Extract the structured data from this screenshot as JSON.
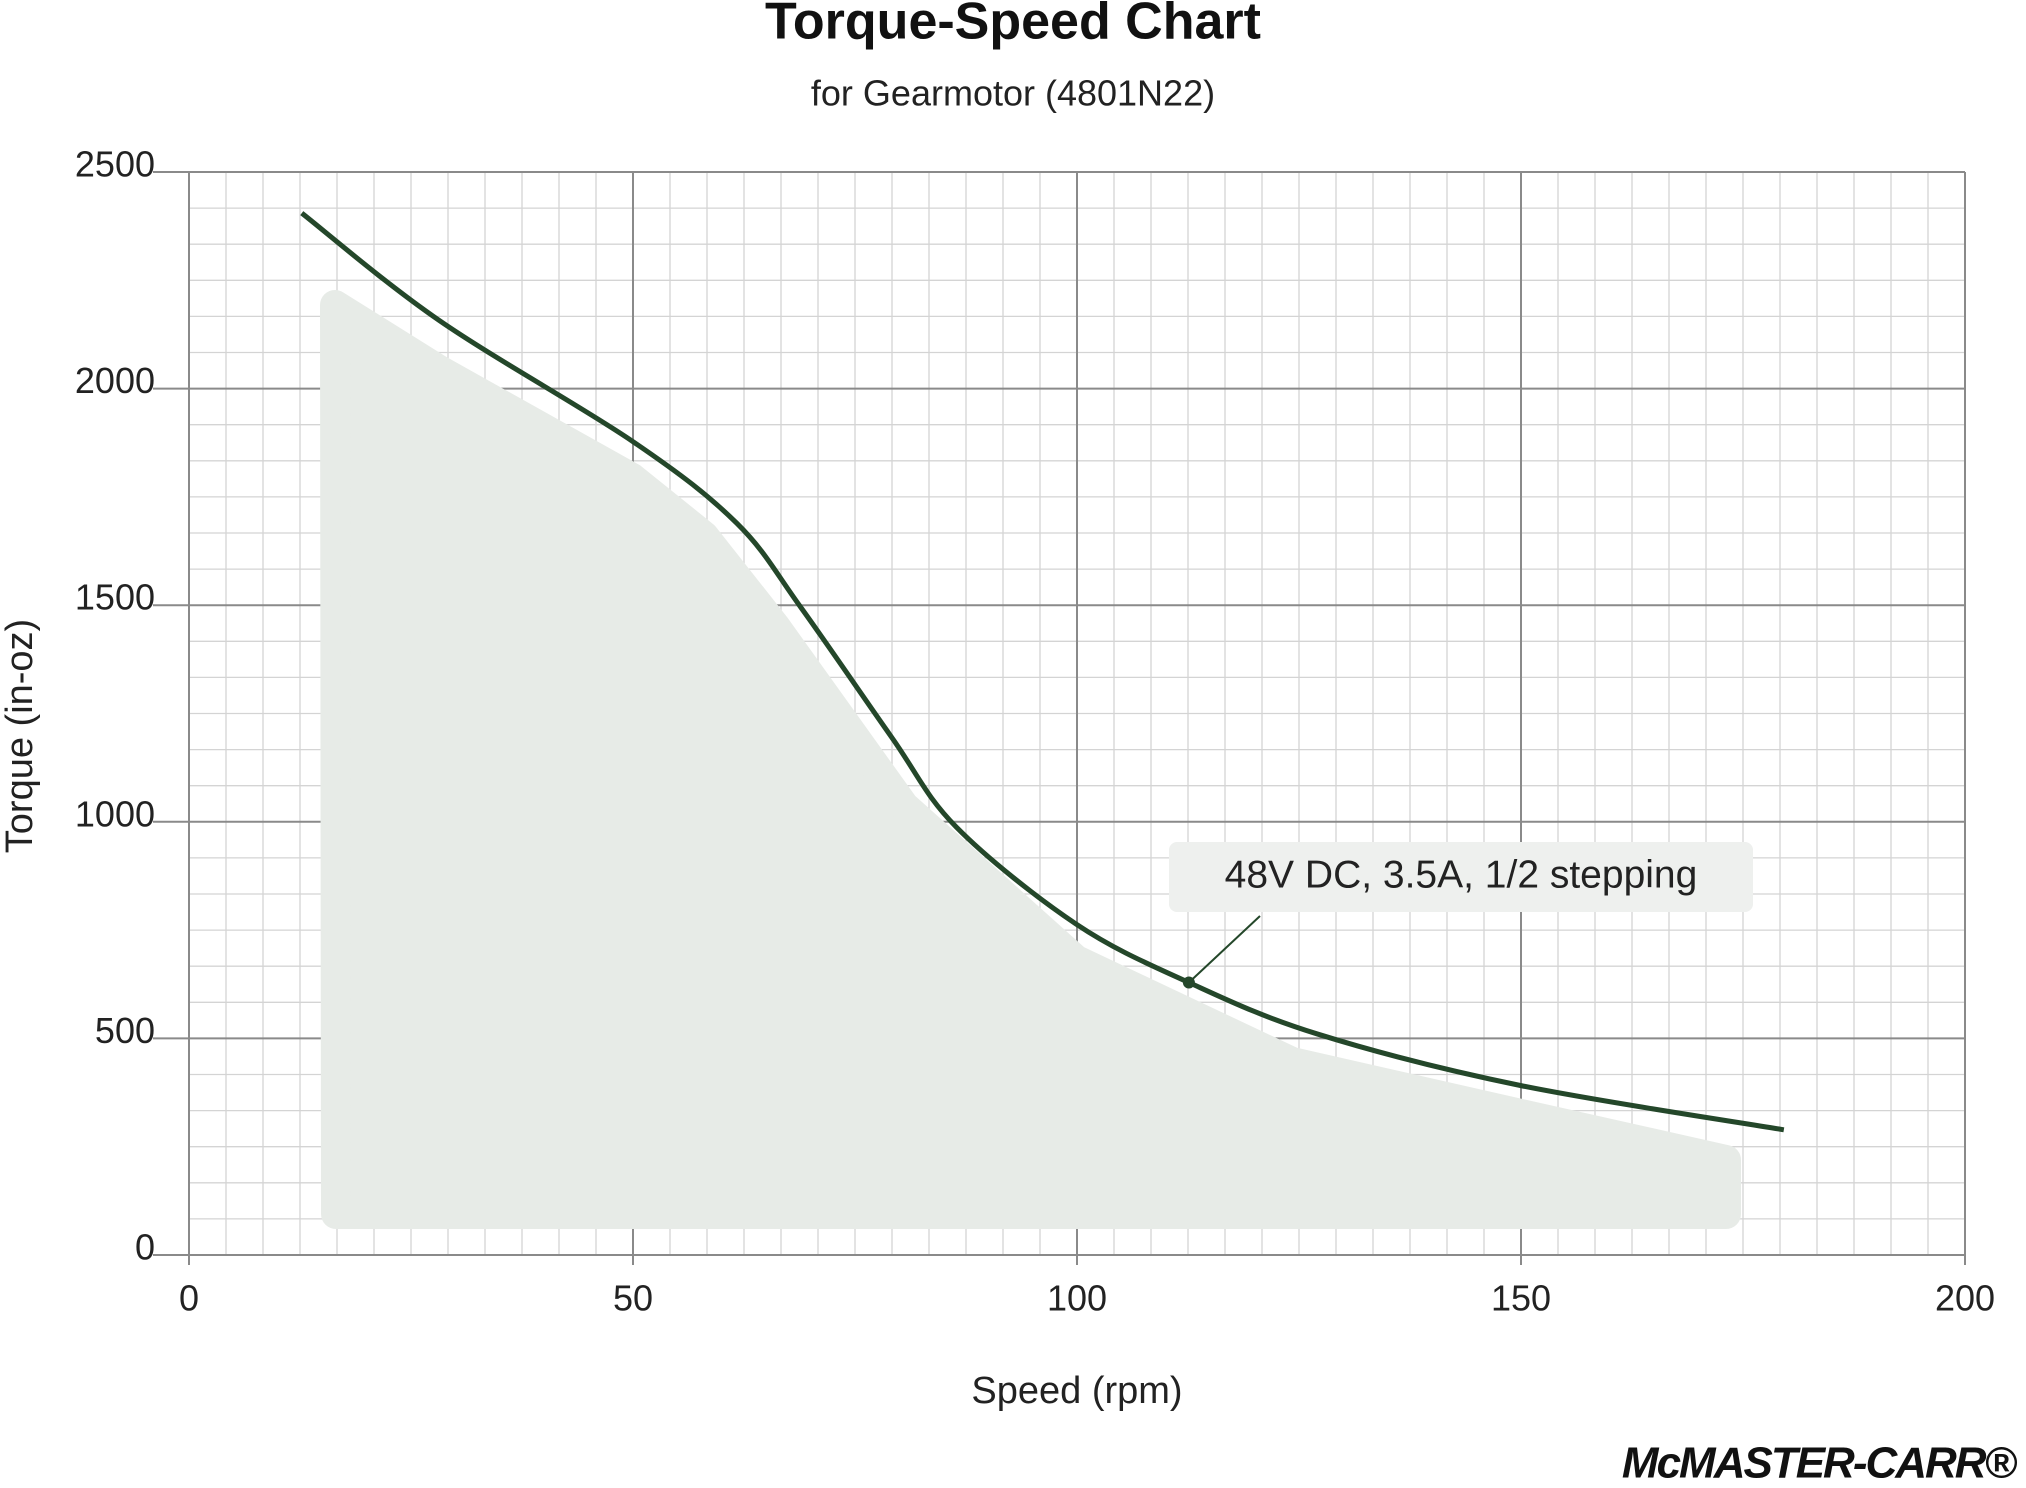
{
  "chart_data": {
    "type": "line",
    "title": "Torque-Speed Chart",
    "subtitle": "for Gearmotor (4801N22)",
    "x_label": "Speed (rpm)",
    "y_label": "Torque (in-oz)",
    "x": [
      12.7,
      28.2,
      49.9,
      61.7,
      68.9,
      79.1,
      86.4,
      99.9,
      112.6,
      127.1,
      150,
      179.6
    ],
    "series": [
      {
        "name": "48V DC, 3.5A, 1/2 stepping",
        "color": "#24472a",
        "values": [
          2405,
          2157,
          1879,
          1689,
          1495,
          1196,
          988,
          764,
          629,
          510,
          391,
          289
        ]
      }
    ],
    "annotation": {
      "text": "48V DC, 3.5A, 1/2 stepping",
      "x": 112.6,
      "y": 629
    },
    "xlim": [
      0,
      200
    ],
    "xticks": [
      0,
      50,
      100,
      150,
      200
    ],
    "ylim": [
      0,
      2500
    ],
    "yticks": [
      0,
      500,
      1000,
      1500,
      2000,
      2500
    ],
    "grid": true,
    "brand": "McMASTER-CARR®"
  }
}
